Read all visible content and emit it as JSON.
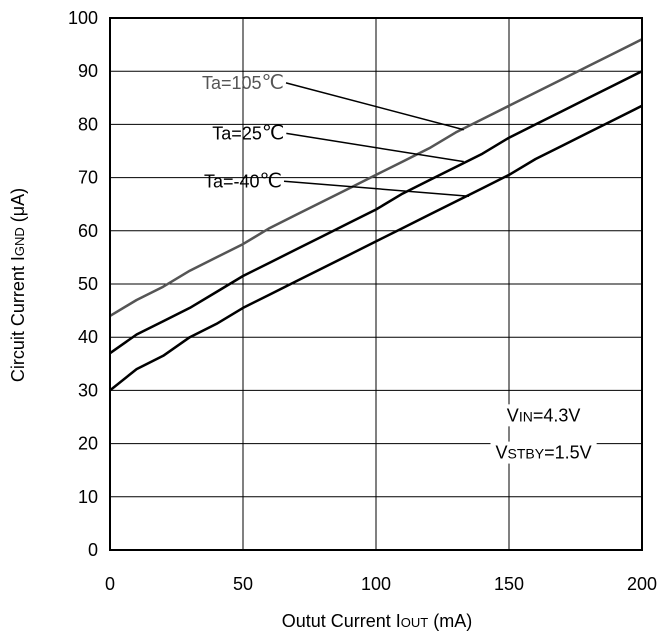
{
  "chart_data": {
    "type": "line",
    "title": "",
    "xlabel": "Outut Current IOUT (mA)",
    "xlabel_parts": {
      "before": "Outut Current I",
      "sub": "OUT",
      "after": " (mA)"
    },
    "ylabel": "Circuit Current IGND (μA)",
    "ylabel_parts": {
      "before": "Circuit Current I",
      "sub": "GND",
      "after": " (μA)"
    },
    "xlim": [
      0,
      200
    ],
    "ylim": [
      0,
      100
    ],
    "xticks": [
      0,
      50,
      100,
      150,
      200
    ],
    "yticks": [
      0,
      10,
      20,
      30,
      40,
      50,
      60,
      70,
      80,
      90,
      100
    ],
    "xtick_labels": [
      "0",
      "50",
      "100",
      "150",
      "200"
    ],
    "ytick_labels": [
      "0",
      "10",
      "20",
      "30",
      "40",
      "50",
      "60",
      "70",
      "80",
      "90",
      "100"
    ],
    "grid": true,
    "series": [
      {
        "name": "Ta=105℃",
        "color": "#555555",
        "x": [
          0,
          10,
          20,
          30,
          40,
          50,
          60,
          70,
          80,
          90,
          100,
          110,
          120,
          130,
          140,
          150,
          160,
          170,
          180,
          190,
          200
        ],
        "y": [
          44,
          47,
          49.5,
          52.5,
          55,
          57.5,
          60.5,
          63,
          65.5,
          68,
          70.5,
          73,
          75.5,
          78.5,
          81,
          83.5,
          86,
          88.5,
          91,
          93.5,
          96
        ]
      },
      {
        "name": "Ta=25℃",
        "color": "#000000",
        "x": [
          0,
          10,
          20,
          30,
          40,
          50,
          60,
          70,
          80,
          90,
          100,
          110,
          120,
          130,
          140,
          150,
          160,
          170,
          180,
          190,
          200
        ],
        "y": [
          37,
          40.5,
          43,
          45.5,
          48.5,
          51.5,
          54,
          56.5,
          59,
          61.5,
          64,
          67,
          69.5,
          72,
          74.5,
          77.5,
          80,
          82.5,
          85,
          87.5,
          90
        ]
      },
      {
        "name": "Ta=-40℃",
        "color": "#000000",
        "x": [
          0,
          10,
          20,
          30,
          40,
          50,
          60,
          70,
          80,
          90,
          100,
          110,
          120,
          130,
          140,
          150,
          160,
          170,
          180,
          190,
          200
        ],
        "y": [
          30,
          34,
          36.5,
          40,
          42.5,
          45.5,
          48,
          50.5,
          53,
          55.5,
          58,
          60.5,
          63,
          65.5,
          68,
          70.5,
          73.5,
          76,
          78.5,
          81,
          83.5
        ]
      }
    ],
    "series_labels": [
      {
        "prefix": "Ta=105",
        "unit": "℃",
        "x": 50,
        "y": 88,
        "target_x": 133,
        "target_y": 79,
        "color": "#555555"
      },
      {
        "prefix": "Ta=25",
        "unit": "℃",
        "x": 52,
        "y": 78.5,
        "target_x": 133,
        "target_y": 73,
        "color": "#000000"
      },
      {
        "prefix": "Ta=-40",
        "unit": "℃",
        "x": 50,
        "y": 69.5,
        "target_x": 135,
        "target_y": 66.5,
        "color": "#000000"
      }
    ],
    "annotations": [
      {
        "pre": "V",
        "sub": "IN",
        "post": "=4.3V",
        "x": 163,
        "y": 25.5
      },
      {
        "pre": "V",
        "sub": "STBY",
        "post": "=1.5V",
        "x": 163,
        "y": 18.5
      }
    ]
  }
}
